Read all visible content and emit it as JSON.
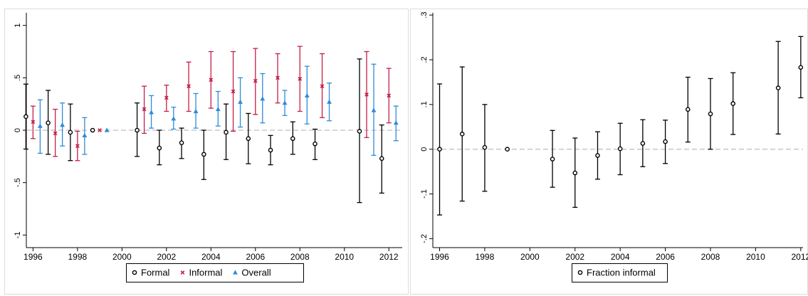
{
  "chart_data": [
    {
      "type": "scatter",
      "title": "",
      "xlabel": "",
      "ylabel": "",
      "xlim": [
        1995.7,
        2012.6
      ],
      "ylim": [
        -1.12,
        1.12
      ],
      "xticks": [
        1996,
        1998,
        2000,
        2002,
        2004,
        2006,
        2008,
        2010,
        2012
      ],
      "xtick_labels": [
        "1996",
        "1998",
        "2000",
        "2002",
        "2004",
        "2006",
        "2008",
        "2010",
        "2012"
      ],
      "yticks": [
        -1,
        -0.5,
        0,
        0.5,
        1
      ],
      "ytick_labels": [
        "-1",
        "-.5",
        "0",
        ".5",
        "1"
      ],
      "reference_line": 0,
      "grid": false,
      "legend_position": "bottom",
      "series": [
        {
          "name": "Formal",
          "marker": "circle",
          "color": "#000000",
          "points": [
            {
              "x": 1996,
              "y": 0.13,
              "lo": -0.18,
              "hi": 0.44
            },
            {
              "x": 1997,
              "y": 0.07,
              "lo": -0.23,
              "hi": 0.38
            },
            {
              "x": 1998,
              "y": -0.02,
              "lo": -0.29,
              "hi": 0.25
            },
            {
              "x": 1999,
              "y": 0.0,
              "lo": 0.0,
              "hi": 0.0
            },
            {
              "x": 2001,
              "y": 0.0,
              "lo": -0.25,
              "hi": 0.26
            },
            {
              "x": 2002,
              "y": -0.17,
              "lo": -0.33,
              "hi": 0.0
            },
            {
              "x": 2003,
              "y": -0.12,
              "lo": -0.27,
              "hi": 0.02
            },
            {
              "x": 2004,
              "y": -0.23,
              "lo": -0.47,
              "hi": 0.0
            },
            {
              "x": 2005,
              "y": -0.02,
              "lo": -0.28,
              "hi": 0.25
            },
            {
              "x": 2006,
              "y": -0.08,
              "lo": -0.32,
              "hi": 0.16
            },
            {
              "x": 2007,
              "y": -0.19,
              "lo": -0.33,
              "hi": -0.05
            },
            {
              "x": 2008,
              "y": -0.08,
              "lo": -0.23,
              "hi": 0.08
            },
            {
              "x": 2009,
              "y": -0.13,
              "lo": -0.28,
              "hi": 0.01
            },
            {
              "x": 2011,
              "y": -0.01,
              "lo": -0.69,
              "hi": 0.68
            },
            {
              "x": 2012,
              "y": -0.27,
              "lo": -0.6,
              "hi": 0.05
            }
          ]
        },
        {
          "name": "Informal",
          "marker": "x",
          "color": "#c41e48",
          "points": [
            {
              "x": 1996,
              "y": 0.08,
              "lo": -0.08,
              "hi": 0.23
            },
            {
              "x": 1997,
              "y": -0.03,
              "lo": -0.25,
              "hi": 0.2
            },
            {
              "x": 1998,
              "y": -0.15,
              "lo": -0.29,
              "hi": -0.01
            },
            {
              "x": 1999,
              "y": 0.0,
              "lo": 0.0,
              "hi": 0.0
            },
            {
              "x": 2001,
              "y": 0.2,
              "lo": -0.03,
              "hi": 0.42
            },
            {
              "x": 2002,
              "y": 0.31,
              "lo": 0.18,
              "hi": 0.43
            },
            {
              "x": 2003,
              "y": 0.42,
              "lo": 0.18,
              "hi": 0.65
            },
            {
              "x": 2004,
              "y": 0.48,
              "lo": 0.21,
              "hi": 0.75
            },
            {
              "x": 2005,
              "y": 0.37,
              "lo": -0.01,
              "hi": 0.75
            },
            {
              "x": 2006,
              "y": 0.47,
              "lo": 0.15,
              "hi": 0.78
            },
            {
              "x": 2007,
              "y": 0.5,
              "lo": 0.26,
              "hi": 0.73
            },
            {
              "x": 2008,
              "y": 0.49,
              "lo": 0.18,
              "hi": 0.8
            },
            {
              "x": 2009,
              "y": 0.42,
              "lo": 0.12,
              "hi": 0.73
            },
            {
              "x": 2011,
              "y": 0.34,
              "lo": -0.07,
              "hi": 0.75
            },
            {
              "x": 2012,
              "y": 0.33,
              "lo": 0.07,
              "hi": 0.59
            }
          ]
        },
        {
          "name": "Overall",
          "marker": "triangle",
          "color": "#2e8bd8",
          "points": [
            {
              "x": 1996,
              "y": 0.04,
              "lo": -0.22,
              "hi": 0.29
            },
            {
              "x": 1997,
              "y": 0.05,
              "lo": -0.15,
              "hi": 0.26
            },
            {
              "x": 1998,
              "y": -0.05,
              "lo": -0.23,
              "hi": 0.12
            },
            {
              "x": 1999,
              "y": 0.0,
              "lo": 0.0,
              "hi": 0.0
            },
            {
              "x": 2001,
              "y": 0.17,
              "lo": 0.02,
              "hi": 0.33
            },
            {
              "x": 2002,
              "y": 0.11,
              "lo": 0.01,
              "hi": 0.22
            },
            {
              "x": 2003,
              "y": 0.18,
              "lo": 0.02,
              "hi": 0.35
            },
            {
              "x": 2004,
              "y": 0.2,
              "lo": 0.04,
              "hi": 0.37
            },
            {
              "x": 2005,
              "y": 0.27,
              "lo": 0.03,
              "hi": 0.5
            },
            {
              "x": 2006,
              "y": 0.3,
              "lo": 0.07,
              "hi": 0.54
            },
            {
              "x": 2007,
              "y": 0.26,
              "lo": 0.14,
              "hi": 0.38
            },
            {
              "x": 2008,
              "y": 0.33,
              "lo": 0.06,
              "hi": 0.61
            },
            {
              "x": 2009,
              "y": 0.27,
              "lo": 0.09,
              "hi": 0.45
            },
            {
              "x": 2011,
              "y": 0.19,
              "lo": -0.24,
              "hi": 0.63
            },
            {
              "x": 2012,
              "y": 0.07,
              "lo": -0.1,
              "hi": 0.23
            }
          ]
        }
      ]
    },
    {
      "type": "scatter",
      "title": "",
      "xlabel": "",
      "ylabel": "",
      "xlim": [
        1995.7,
        2012.1
      ],
      "ylim": [
        -0.22,
        0.305
      ],
      "xticks": [
        1996,
        1998,
        2000,
        2002,
        2004,
        2006,
        2008,
        2010,
        2012
      ],
      "xtick_labels": [
        "1996",
        "1998",
        "2000",
        "2002",
        "2004",
        "2006",
        "2008",
        "2010",
        "2012"
      ],
      "yticks": [
        -0.2,
        -0.1,
        0,
        0.1,
        0.2,
        0.3
      ],
      "ytick_labels": [
        "-.2",
        "-.1",
        "0",
        ".1",
        ".2",
        ".3"
      ],
      "reference_line": 0,
      "grid": false,
      "legend_position": "bottom",
      "series": [
        {
          "name": "Fraction informal",
          "marker": "circle",
          "color": "#000000",
          "points": [
            {
              "x": 1996,
              "y": 0.0,
              "lo": -0.147,
              "hi": 0.146
            },
            {
              "x": 1997,
              "y": 0.034,
              "lo": -0.116,
              "hi": 0.184
            },
            {
              "x": 1998,
              "y": 0.004,
              "lo": -0.094,
              "hi": 0.1
            },
            {
              "x": 1999,
              "y": 0.0,
              "lo": 0.0,
              "hi": 0.0
            },
            {
              "x": 2001,
              "y": -0.022,
              "lo": -0.085,
              "hi": 0.042
            },
            {
              "x": 2002,
              "y": -0.053,
              "lo": -0.13,
              "hi": 0.025
            },
            {
              "x": 2003,
              "y": -0.014,
              "lo": -0.067,
              "hi": 0.039
            },
            {
              "x": 2004,
              "y": 0.001,
              "lo": -0.057,
              "hi": 0.058
            },
            {
              "x": 2005,
              "y": 0.013,
              "lo": -0.039,
              "hi": 0.066
            },
            {
              "x": 2006,
              "y": 0.017,
              "lo": -0.032,
              "hi": 0.065
            },
            {
              "x": 2007,
              "y": 0.089,
              "lo": 0.016,
              "hi": 0.161
            },
            {
              "x": 2008,
              "y": 0.079,
              "lo": 0.0,
              "hi": 0.158
            },
            {
              "x": 2009,
              "y": 0.102,
              "lo": 0.033,
              "hi": 0.171
            },
            {
              "x": 2011,
              "y": 0.137,
              "lo": 0.034,
              "hi": 0.241
            },
            {
              "x": 2012,
              "y": 0.183,
              "lo": 0.115,
              "hi": 0.252
            }
          ]
        }
      ]
    }
  ]
}
